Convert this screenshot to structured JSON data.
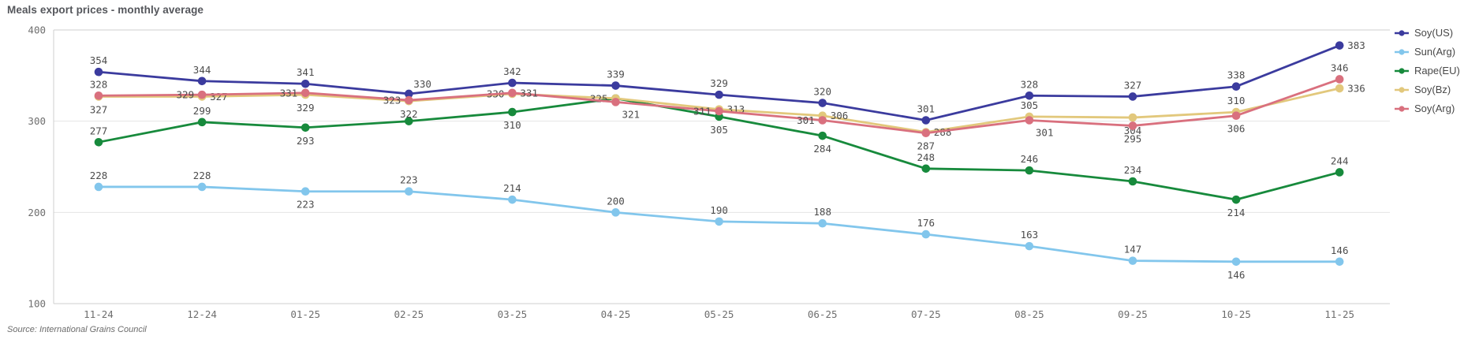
{
  "title": "Meals export prices - monthly average",
  "source": "Source: International Grains Council",
  "colors": {
    "soy_us": "#3b3b9e",
    "sun_arg": "#82c6ec",
    "rape_eu": "#178a3c",
    "soy_bz": "#e2c87c",
    "soy_arg": "#d9707e",
    "grid": "#e4e4e4",
    "axis": "#cfcfcf",
    "label_text": "#4c4c4c",
    "tick_text": "#6e6e6e"
  },
  "chart_data": {
    "type": "line",
    "title": "Meals export prices - monthly average",
    "x": [
      "11-24",
      "12-24",
      "01-25",
      "02-25",
      "03-25",
      "04-25",
      "05-25",
      "06-25",
      "07-25",
      "08-25",
      "09-25",
      "10-25",
      "11-25"
    ],
    "xlabel": "",
    "ylabel": "",
    "ylim": [
      100,
      400
    ],
    "yticks": [
      100,
      200,
      300,
      400
    ],
    "grid": "horizontal-only",
    "legend_position": "right",
    "point_labels": true,
    "series": [
      {
        "name": "Soy(US)",
        "color": "#3b3b9e",
        "values": [
          354,
          344,
          341,
          330,
          342,
          339,
          329,
          320,
          301,
          328,
          327,
          338,
          383
        ],
        "label_placements": [
          "a",
          "a",
          "a",
          "ar",
          "a",
          "a",
          "a",
          "a",
          "a",
          "a",
          "a",
          "a",
          "r"
        ]
      },
      {
        "name": "Sun(Arg)",
        "color": "#82c6ec",
        "values": [
          228,
          228,
          223,
          223,
          214,
          200,
          190,
          188,
          176,
          163,
          147,
          146,
          146
        ],
        "label_placements": [
          "a",
          "a",
          "b",
          "a",
          "a",
          "a",
          "a",
          "a",
          "a",
          "a",
          "a",
          "b",
          "a"
        ]
      },
      {
        "name": "Rape(EU)",
        "color": "#178a3c",
        "values": [
          277,
          299,
          293,
          300,
          310,
          325,
          305,
          284,
          248,
          246,
          234,
          214,
          244
        ],
        "label_placements": [
          "a",
          "a",
          "b",
          "h",
          "b",
          "h",
          "b",
          "b",
          "a",
          "a",
          "a",
          "b",
          "a"
        ]
      },
      {
        "name": "Soy(Bz)",
        "color": "#e2c87c",
        "values": [
          327,
          327,
          329,
          322,
          330,
          325,
          313,
          306,
          288,
          305,
          304,
          310,
          336
        ],
        "label_placements": [
          "b",
          "r",
          "b",
          "b",
          "l",
          "l",
          "r",
          "r",
          "r",
          "a",
          "b",
          "a",
          "r"
        ]
      },
      {
        "name": "Soy(Arg)",
        "color": "#d9707e",
        "values": [
          328,
          329,
          331,
          323,
          331,
          321,
          311,
          301,
          287,
          301,
          295,
          306,
          346
        ],
        "label_placements": [
          "a",
          "l",
          "l",
          "l",
          "r",
          "br",
          "l",
          "l",
          "b",
          "br",
          "b",
          "b",
          "a"
        ]
      }
    ]
  }
}
